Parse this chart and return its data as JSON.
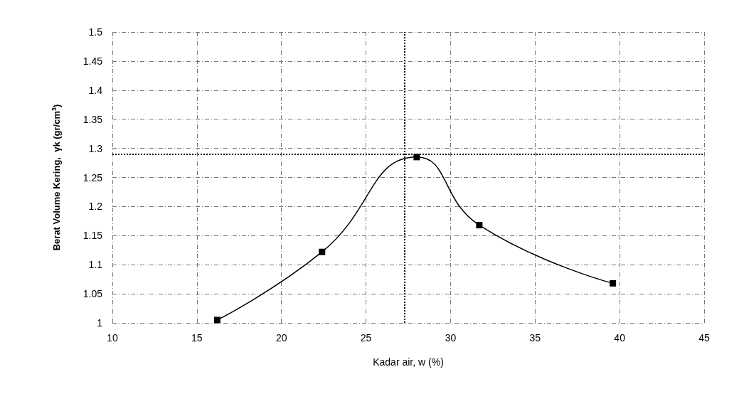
{
  "chart_data": {
    "type": "line",
    "xlabel": "Kadar air, w (%)",
    "ylabel": "Berat Volume Kering,  γk (gr/cm$^{3}$)",
    "x": [
      16.2,
      22.4,
      28.0,
      31.7,
      39.6
    ],
    "series": [
      {
        "color": "#000000",
        "values": [
          1.005,
          1.122,
          1.285,
          1.168,
          1.068
        ]
      }
    ],
    "xlim": [
      10,
      45
    ],
    "xticks": [
      10,
      15,
      20,
      25,
      30,
      35,
      40,
      45
    ],
    "ylim": [
      1,
      1.5
    ],
    "yticks": [
      1,
      1.05,
      1.1,
      1.15,
      1.2,
      1.25,
      1.3,
      1.35,
      1.4,
      1.45,
      1.5
    ],
    "ref_lines": [
      {
        "axis": "y",
        "value": 1.29,
        "line_style": "dotted",
        "color": "#000000"
      },
      {
        "axis": "x",
        "value": 27.3,
        "line_style": "dotted",
        "color": "#000000"
      }
    ],
    "grid": true,
    "marker": "square",
    "line_style": "solid"
  }
}
